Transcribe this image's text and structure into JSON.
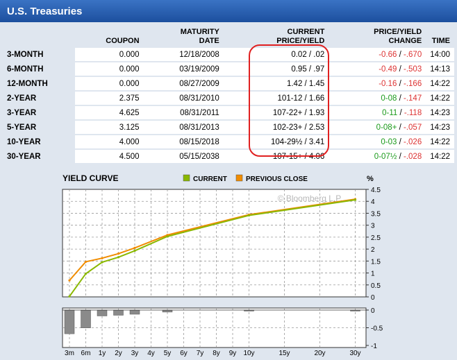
{
  "title": "U.S. Treasuries",
  "columns": {
    "label": "",
    "coupon": "COUPON",
    "maturity_1": "MATURITY",
    "maturity_2": "DATE",
    "price_1": "CURRENT",
    "price_2": "PRICE/YIELD",
    "change_1": "PRICE/YIELD",
    "change_2": "CHANGE",
    "time": "TIME"
  },
  "rows": [
    {
      "label": "3-MONTH",
      "coupon": "0.000",
      "maturity": "12/18/2008",
      "price_yield": "0.02 / .02",
      "chg_price": "-0.66",
      "chg_price_sign": "neg",
      "chg_yield": "-.670",
      "time": "14:00"
    },
    {
      "label": "6-MONTH",
      "coupon": "0.000",
      "maturity": "03/19/2009",
      "price_yield": "0.95 / .97",
      "chg_price": "-0.49",
      "chg_price_sign": "neg",
      "chg_yield": "-.503",
      "time": "14:13"
    },
    {
      "label": "12-MONTH",
      "coupon": "0.000",
      "maturity": "08/27/2009",
      "price_yield": "1.42 / 1.45",
      "chg_price": "-0.16",
      "chg_price_sign": "neg",
      "chg_yield": "-.166",
      "time": "14:22"
    },
    {
      "label": "2-YEAR",
      "coupon": "2.375",
      "maturity": "08/31/2010",
      "price_yield": "101-12 / 1.66",
      "chg_price": "0-08",
      "chg_price_sign": "pos",
      "chg_yield": "-.147",
      "time": "14:22"
    },
    {
      "label": "3-YEAR",
      "coupon": "4.625",
      "maturity": "08/31/2011",
      "price_yield": "107-22+ / 1.93",
      "chg_price": "0-11",
      "chg_price_sign": "pos",
      "chg_yield": "-.118",
      "time": "14:23"
    },
    {
      "label": "5-YEAR",
      "coupon": "3.125",
      "maturity": "08/31/2013",
      "price_yield": "102-23+ / 2.53",
      "chg_price": "0-08+",
      "chg_price_sign": "pos",
      "chg_yield": "-.057",
      "time": "14:23"
    },
    {
      "label": "10-YEAR",
      "coupon": "4.000",
      "maturity": "08/15/2018",
      "price_yield": "104-29½ / 3.41",
      "chg_price": "0-03",
      "chg_price_sign": "pos",
      "chg_yield": "-.026",
      "time": "14:22"
    },
    {
      "label": "30-YEAR",
      "coupon": "4.500",
      "maturity": "05/15/2038",
      "price_yield": "107-15+ / 4.06",
      "chg_price": "0-07½",
      "chg_price_sign": "pos",
      "chg_yield": "-.028",
      "time": "14:22"
    }
  ],
  "colors": {
    "negative": "#d33333",
    "positive": "#1a9a1a",
    "current": "#8ab800",
    "previous": "#f08c00",
    "bar": "#8a8a8a",
    "highlight": "#e02020"
  },
  "chart_data": {
    "type": "line",
    "title": "YIELD CURVE",
    "unit_label": "%",
    "watermark": "© Bloomberg L.P.",
    "x": [
      "3m",
      "6m",
      "1y",
      "2y",
      "3y",
      "5y",
      "10y",
      "30y"
    ],
    "x_ticks": [
      "3m",
      "6m",
      "1y",
      "2y",
      "3y",
      "4y",
      "5y",
      "6y",
      "7y",
      "8y",
      "9y",
      "10y",
      "15y",
      "20y",
      "30y"
    ],
    "series": [
      {
        "name": "CURRENT",
        "color": "#8ab800",
        "values": [
          0.02,
          0.97,
          1.45,
          1.66,
          1.93,
          2.53,
          3.41,
          4.06
        ]
      },
      {
        "name": "PREVIOUS CLOSE",
        "color": "#f08c00",
        "values": [
          0.69,
          1.47,
          1.62,
          1.81,
          2.05,
          2.59,
          3.44,
          4.09
        ]
      }
    ],
    "ylim": [
      0,
      4.5
    ],
    "y_ticks": [
      0,
      0.5,
      1,
      1.5,
      2,
      2.5,
      3,
      3.5,
      4,
      4.5
    ],
    "change_bars": {
      "values": [
        -0.67,
        -0.503,
        -0.166,
        -0.147,
        -0.118,
        -0.057,
        -0.026,
        -0.028
      ],
      "ylim": [
        -1,
        0
      ],
      "y_ticks": [
        0,
        -0.5,
        -1
      ]
    },
    "legend_position": "top"
  }
}
